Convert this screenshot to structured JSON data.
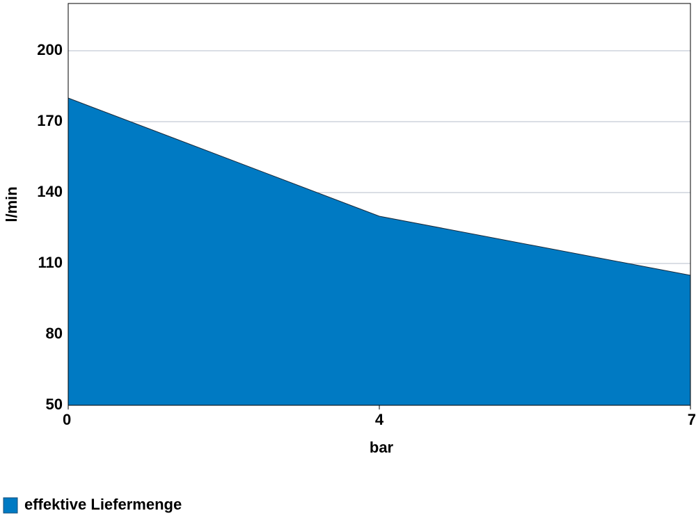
{
  "chart_data": {
    "type": "area",
    "x_label": "bar",
    "y_label": "l/min",
    "categories": [
      "0",
      "4",
      "7"
    ],
    "series": [
      {
        "name": "effektive Liefermenge",
        "color": "#007ac3",
        "values": [
          180,
          130,
          105
        ]
      }
    ],
    "ylim": [
      50,
      220
    ],
    "yticks": [
      50,
      80,
      110,
      140,
      170,
      200
    ],
    "grid": true,
    "legend": "bottom-left"
  }
}
